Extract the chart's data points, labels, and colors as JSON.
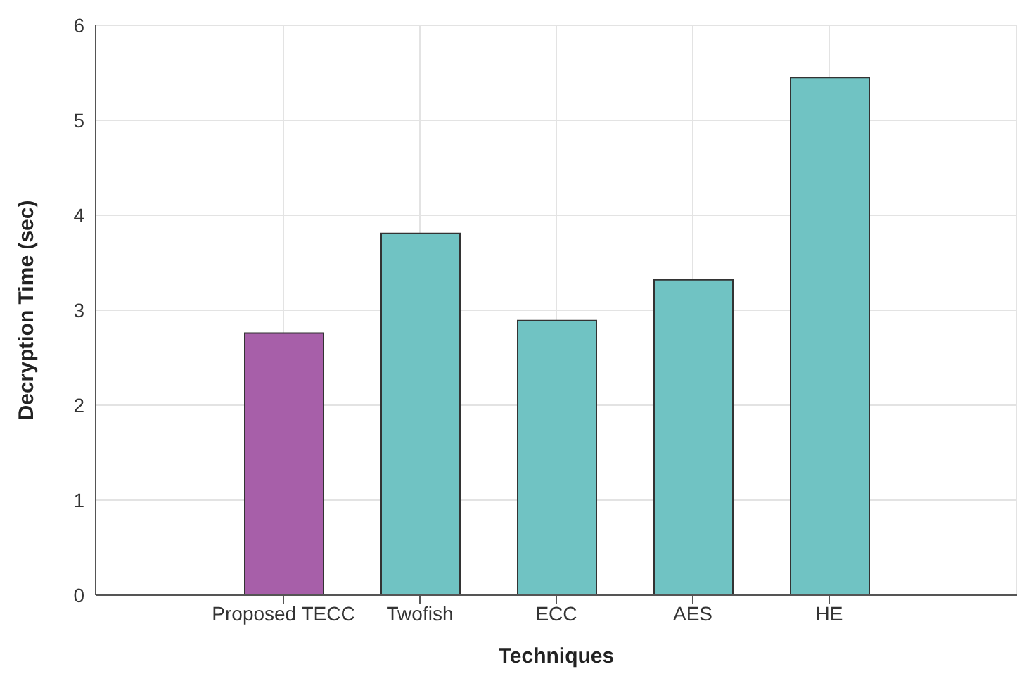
{
  "chart_data": {
    "type": "bar",
    "xlabel": "Techniques",
    "ylabel": "Decryption Time (sec)",
    "categories": [
      "Proposed TECC",
      "Twofish",
      "ECC",
      "AES",
      "HE"
    ],
    "values": [
      2.76,
      3.81,
      2.89,
      3.32,
      5.45
    ],
    "colors": [
      "#a75fa9",
      "#70c3c3",
      "#70c3c3",
      "#70c3c3",
      "#70c3c3"
    ],
    "ylim": [
      0,
      6
    ],
    "yticks": [
      0,
      1,
      2,
      3,
      4,
      5,
      6
    ],
    "grid": true
  }
}
